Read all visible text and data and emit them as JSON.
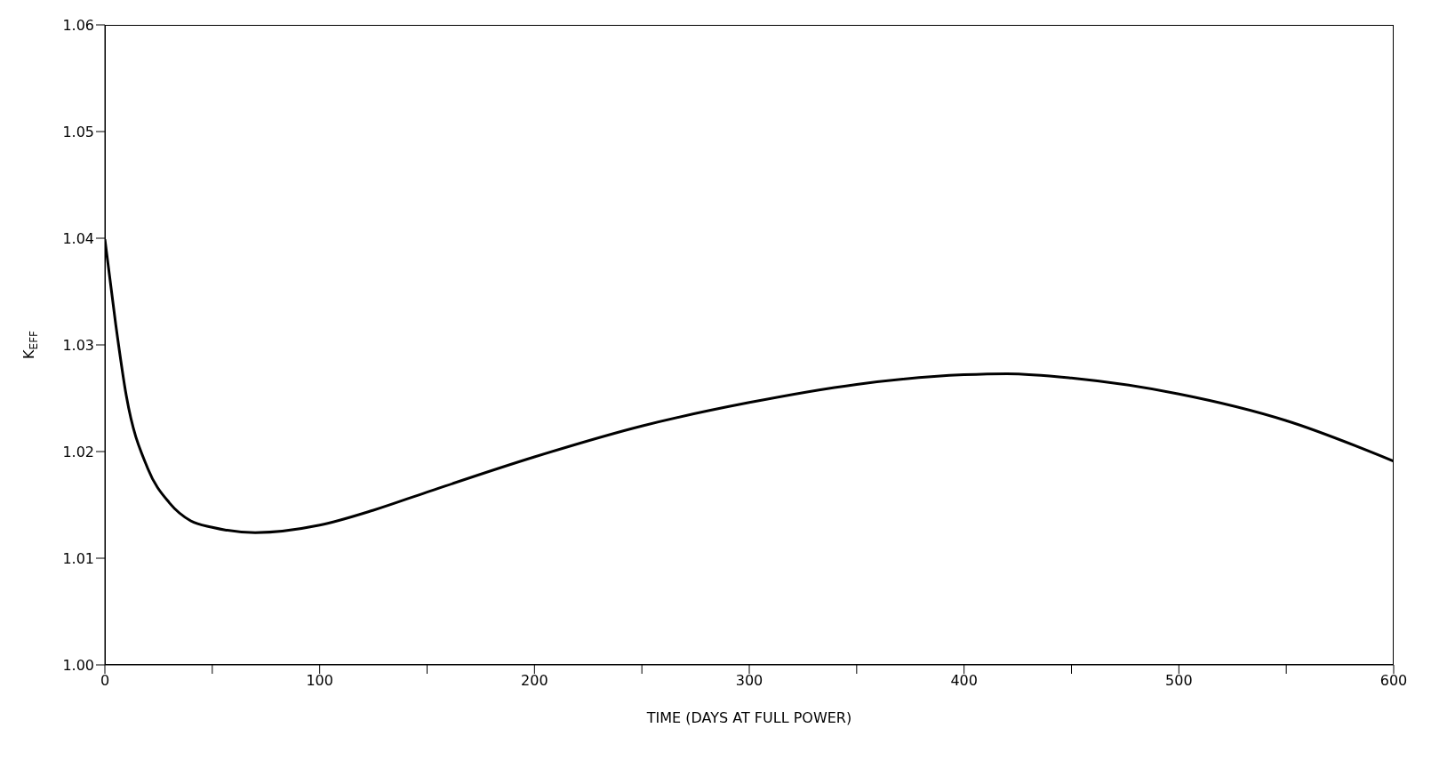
{
  "chart_data": {
    "type": "line",
    "xlabel": "TIME (DAYS AT FULL POWER)",
    "ylabel": "K$_{EFF}$",
    "x": [
      0,
      5,
      10,
      20,
      30,
      40,
      50,
      70,
      100,
      125,
      150,
      200,
      250,
      300,
      350,
      400,
      420,
      450,
      500,
      550,
      600
    ],
    "series": [
      {
        "color": "#000000",
        "values": [
          1.0399,
          1.032,
          1.0252,
          1.0184,
          1.0152,
          1.0135,
          1.0129,
          1.0124,
          1.0131,
          1.0145,
          1.0162,
          1.0195,
          1.0224,
          1.0246,
          1.0263,
          1.0272,
          1.0273,
          1.0269,
          1.0254,
          1.0229,
          1.0191
        ]
      }
    ],
    "xlim": [
      0,
      600
    ],
    "xticks": [
      0,
      {
        "value": 50,
        "label": null
      },
      100,
      {
        "value": 150,
        "label": null
      },
      200,
      {
        "value": 250,
        "label": null
      },
      300,
      {
        "value": 350,
        "label": null
      },
      400,
      {
        "value": 450,
        "label": null
      },
      500,
      {
        "value": 550,
        "label": null
      },
      600
    ],
    "ylim": [
      1.0,
      1.06
    ],
    "yticks": [
      {
        "value": 1.0,
        "label": "1.00"
      },
      1.01,
      1.02,
      1.03,
      1.04,
      1.05,
      1.06
    ],
    "marker": "none",
    "line_style": "solid"
  }
}
